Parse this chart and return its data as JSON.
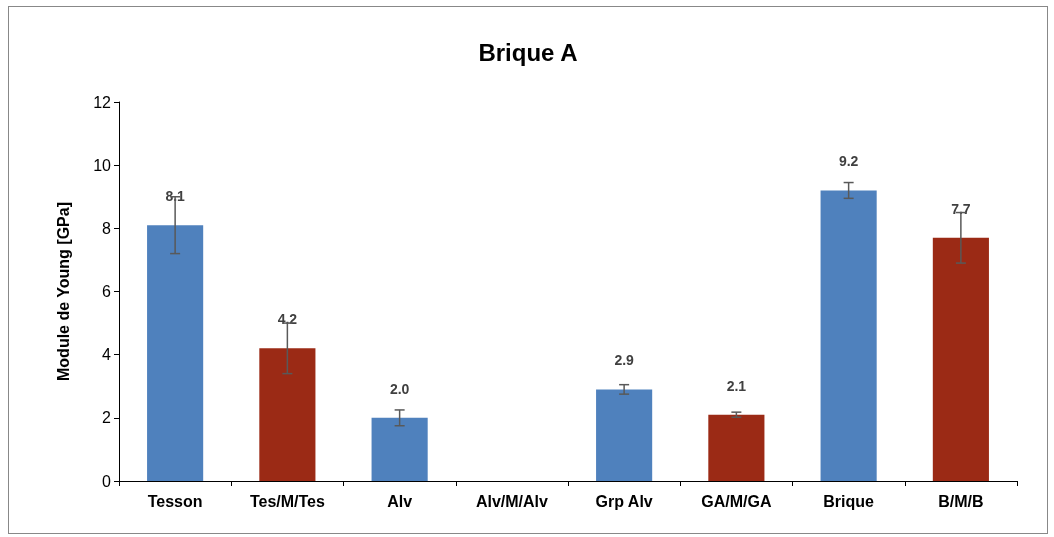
{
  "chart_data": {
    "type": "bar",
    "title": "Brique A",
    "ylabel": "Module de Young [GPa]",
    "categories": [
      "Tesson",
      "Tes/M/Tes",
      "Alv",
      "Alv/M/Alv",
      "Grp Alv",
      "GA/M/GA",
      "Brique",
      "B/M/B"
    ],
    "values": [
      8.1,
      4.2,
      2.0,
      null,
      2.9,
      2.1,
      9.2,
      7.7
    ],
    "value_labels": [
      "8.1",
      "4.2",
      "2.0",
      null,
      "2.9",
      "2.1",
      "9.2",
      "7.7"
    ],
    "colors": [
      "#4f81bd",
      "#9b2a15",
      "#4f81bd",
      "#9b2a15",
      "#4f81bd",
      "#9b2a15",
      "#4f81bd",
      "#9b2a15"
    ],
    "errors": [
      0.9,
      0.8,
      0.25,
      null,
      0.15,
      0.08,
      0.25,
      0.8
    ],
    "ylim": [
      0,
      12
    ],
    "yticks": [
      0,
      2,
      4,
      6,
      8,
      10,
      12
    ],
    "grid": false
  }
}
